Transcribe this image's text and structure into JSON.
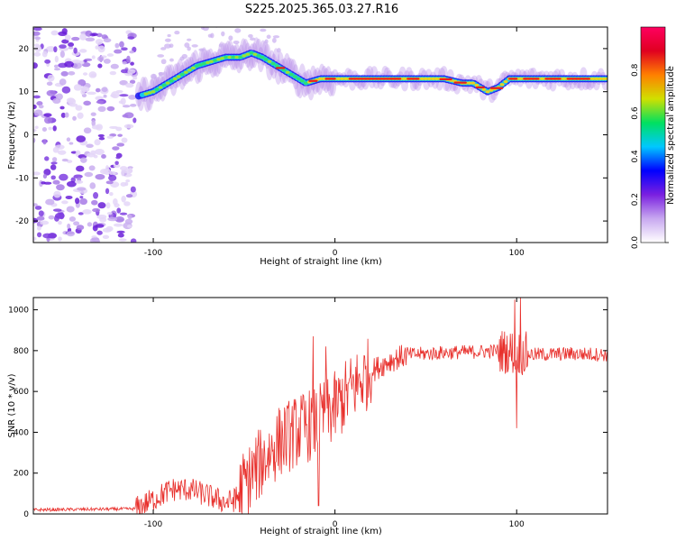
{
  "title": "S225.2025.365.03.27.R16",
  "chart_data": [
    {
      "type": "heatmap",
      "name": "spectrogram",
      "xlabel": "Height of straight line (km)",
      "ylabel": "Frequency (Hz)",
      "xlim": [
        -166,
        150
      ],
      "ylim": [
        -25,
        25
      ],
      "xticks": [
        -100,
        0,
        100
      ],
      "yticks": [
        -20,
        -10,
        0,
        10,
        20
      ],
      "xtick_labels": [
        "-100",
        "0",
        "100"
      ],
      "ytick_labels": [
        "-20",
        "-10",
        "0",
        "10",
        "20"
      ],
      "colorbar": {
        "label": "Normalized spectral amplitude",
        "range": [
          0,
          1
        ],
        "ticks": [
          0,
          0.2,
          0.4,
          0.6,
          0.8
        ],
        "tick_labels": [
          "0.0",
          "0.2",
          "0.4",
          "0.6",
          "0.8"
        ],
        "colors": [
          "#ffffff",
          "#c8a8f0",
          "#7a20e0",
          "#0000ff",
          "#00c8ff",
          "#00e060",
          "#d0e000",
          "#ff8000",
          "#e00020",
          "#ff0060"
        ]
      },
      "ridge": {
        "x": [
          -108,
          -100,
          -92,
          -84,
          -76,
          -68,
          -60,
          -52,
          -46,
          -40,
          -32,
          -24,
          -16,
          -8,
          0,
          20,
          40,
          60,
          70,
          76,
          84,
          90,
          96,
          100,
          120,
          150
        ],
        "freq": [
          9,
          10,
          12,
          14,
          16,
          17,
          18,
          18,
          19,
          18,
          16,
          14,
          12,
          13,
          13,
          13,
          13,
          13,
          12,
          12,
          10,
          11,
          13,
          13,
          13,
          13
        ]
      },
      "noise_region_x": [
        -166,
        -110
      ]
    },
    {
      "type": "line",
      "name": "snr",
      "xlabel": "Height of straight line (km)",
      "ylabel": "SNR (10 * v/v)",
      "xlim": [
        -166,
        150
      ],
      "ylim": [
        0,
        1060
      ],
      "xticks": [
        -100,
        0,
        100
      ],
      "yticks": [
        0,
        200,
        400,
        600,
        800,
        1000
      ],
      "xtick_labels": [
        "-100",
        "0",
        "100"
      ],
      "ytick_labels": [
        "0",
        "200",
        "400",
        "600",
        "800",
        "1000"
      ],
      "color": "#e8302c",
      "trend": {
        "x": [
          -166,
          -110,
          -100,
          -90,
          -80,
          -70,
          -60,
          -55,
          -50,
          -40,
          -30,
          -20,
          -10,
          0,
          10,
          20,
          30,
          40,
          60,
          80,
          90,
          100,
          110,
          130,
          150
        ],
        "y": [
          20,
          25,
          70,
          120,
          120,
          90,
          55,
          70,
          140,
          260,
          360,
          410,
          450,
          520,
          620,
          700,
          750,
          780,
          790,
          795,
          800,
          790,
          780,
          785,
          780
        ]
      },
      "spikes": [
        {
          "x": -12,
          "y": 870
        },
        {
          "x": -9,
          "y": 40
        },
        {
          "x": -5,
          "y": 820
        },
        {
          "x": 100,
          "y": 420
        },
        {
          "x": 99,
          "y": 1050
        },
        {
          "x": 102,
          "y": 1060
        }
      ]
    }
  ]
}
